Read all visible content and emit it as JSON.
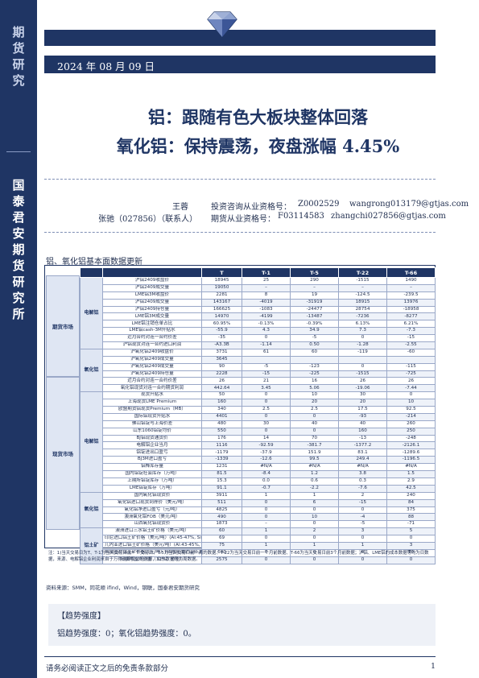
{
  "sidebar": {
    "brand_top": "期货研究",
    "brand_main": "国泰君安期货研究所"
  },
  "header": {
    "date": "2024 年 08 月 09 日"
  },
  "title": {
    "line1": "铝：跟随有色大板块整体回落",
    "line2": "氧化铝：保持震荡，夜盘涨幅 4.45%"
  },
  "authors": [
    {
      "name": "王蓉",
      "cert_label": "投资咨询从业资格号：",
      "cert": "Z0002529",
      "email": "wangrong013179@gtjas.com"
    },
    {
      "name": "张驰（027856）（联系人）",
      "cert_label": "期货从业资格号：",
      "cert": "F03114583",
      "email": "zhangchi027856@gtjas.com"
    }
  ],
  "section_title": "铝、氧化铝基本面数据更新",
  "table": {
    "headers": [
      "",
      "T",
      "T-1",
      "T-5",
      "T-22",
      "T-66"
    ],
    "categories": [
      {
        "name": "期货市场",
        "sub": [
          {
            "name": "电解铝",
            "rows": [
              [
                "沪铝2409收盘价",
                "18945",
                "25",
                "290",
                "-1515",
                "1490"
              ],
              [
                "沪铝2409成交量",
                "19050",
                "–",
                "–",
                "–",
                "–"
              ],
              [
                "LME铝3M收盘价",
                "2281",
                "8",
                "19",
                "-124.5",
                "-239.5"
              ],
              [
                "沪铝2409成交量",
                "143167",
                "-4019",
                "-31919",
                "18915",
                "13976"
              ],
              [
                "沪铝2409持仓量",
                "166625",
                "-1083",
                "-24477",
                "28754",
                "-18958"
              ],
              [
                "LME铝3M成交量",
                "14970",
                "-4199",
                "-13487",
                "-7236",
                "-8277"
              ],
              [
                "LME铝注销仓单占比",
                "60.95%",
                "-0.13%",
                "-0.39%",
                "6.13%",
                "6.21%"
              ],
              [
                "LME铝cash-3M升贴水",
                "-55.9",
                "4.3",
                "34.9",
                "7.3",
                "-7.3"
              ],
              [
                "近月合约对连一合约价差",
                "-35",
                "0",
                "-5",
                "0",
                "-15"
              ],
              [
                "沪铝现货对连一合约进口利润",
                "-A3.3B",
                "-1.14",
                "0.50",
                "-1.28",
                "-2.55"
              ]
            ]
          },
          {
            "name": "氧化铝",
            "rows": [
              [
                "沪氧化铝2409收盘价",
                "3731",
                "61",
                "60",
                "-119",
                "-60"
              ],
              [
                "沪氧化铝2409成交量",
                "3645",
                "",
                "",
                "",
                ""
              ],
              [
                "沪氧化铝2409成交量",
                "90",
                "-5",
                "-123",
                "0",
                "-115"
              ],
              [
                "沪氧化铝2409持仓量",
                "2228",
                "-15",
                "-225",
                "-1515",
                "-725"
              ],
              [
                "近月合约对连一合约价差",
                "26",
                "21",
                "16",
                "26",
                "26"
              ],
              [
                "氧化铝现货对连一合约期货利润",
                "442.64",
                "3.45",
                "5.06",
                "-19.06",
                "-7.44"
              ]
            ]
          }
        ]
      },
      {
        "name": "现货市场",
        "sub": [
          {
            "name": "电解铝",
            "rows": [
              [
                "现货升贴水",
                "50",
                "0",
                "10",
                "30",
                "0"
              ],
              [
                "上海现货LME Premium",
                "160",
                "0",
                "20",
                "20",
                "10"
              ],
              [
                "欧盟期货铝现货Premium（MB）",
                "340",
                "2.5",
                "2.5",
                "17.5",
                "92.5"
              ],
              [
                "国际铝现货升贴水",
                "4401",
                "0",
                "0",
                "-93",
                "-214"
              ],
              [
                "佛山铝锭与上海价差",
                "480",
                "30",
                "40",
                "40",
                "260"
              ],
              [
                "山东1060铝锭均价",
                "550",
                "0",
                "0",
                "160",
                "250"
              ],
              [
                "BJ铝现货通货价",
                "176",
                "14",
                "70",
                "-13",
                "-248"
              ],
              [
                "电解铝企业当月",
                "1116",
                "-92.59",
                "-381.7",
                "-1377.2",
                "-2126.1"
              ],
              [
                "铝锭进出口盈亏",
                "-1179",
                "-37.9",
                "151.9",
                "83.1",
                "-1289.6"
              ],
              [
                "BJ3M进口盈亏",
                "-1339",
                "-12.6",
                "99.5",
                "249.4",
                "-1196.5"
              ],
              [
                "铝棒库存量",
                "1231",
                "#N/A",
                "#N/A",
                "#N/A",
                "#N/A"
              ],
              [
                "国内铝锭社会库存（万吨）",
                "81.5",
                "-8.4",
                "1.2",
                "3.8",
                "1.5"
              ],
              [
                "上期所铝锭库存（万吨）",
                "15.3",
                "0.0",
                "0.6",
                "0.3",
                "2.9"
              ],
              [
                "LME铝锭库存（万吨）",
                "91.1",
                "-0.7",
                "-2.2",
                "-7.6",
                "42.5"
              ]
            ]
          },
          {
            "name": "氧化铝",
            "rows": [
              [
                "国内氧化铝现货价",
                "3911",
                "1",
                "1",
                "2",
                "240"
              ],
              [
                "氧化铝进口现货到岸价（美元/吨）",
                "511",
                "0",
                "6",
                "-15",
                "84"
              ],
              [
                "氧化铝净进口盈亏（元/吨）",
                "4825",
                "0",
                "0",
                "0",
                "375"
              ],
              [
                "澳洲氧化铝FOB（美元/吨）",
                "490",
                "0",
                "10",
                "-4",
                "88"
              ],
              [
                "山西氧化铝现货价",
                "1873",
                "–",
                "0",
                "-5",
                "-71"
              ]
            ]
          },
          {
            "name": "铝土矿",
            "rows": [
              [
                "澳洲进口三水铝土矿价格（美元/吨）",
                "60",
                "1",
                "2",
                "3",
                "5"
              ],
              [
                "印尼进口铝土矿价格（美元/吨）(Al:45-47%, Si:4-6%)",
                "69",
                "0",
                "0",
                "0",
                "0"
              ],
              [
                "几内亚进口铝土矿价格（美元/吨）(Al:43-45%, Si:2-3%)",
                "75",
                "1",
                "1",
                "1",
                "3"
              ],
              [
                "阳泉国产铝土矿价格（元/吨）(合格现货矿山价,Al:Si=4.5)",
                "600",
                "0",
                "0",
                "0",
                "70"
              ],
              [
                "阳泉与国外价差（32%，价差）",
                "2575",
                "0",
                "0",
                "0",
                "0"
              ]
            ]
          }
        ]
      }
    ]
  },
  "note": "注：1)当天交易日为T、T-1为当天交易日前一个交易日、T-5为当天交易日前一周的数据、T-22为当天交易日前一个月前数据、T-66为当天交易日前3个月前数据；沪铝、LME铝的成本数据等均为日数据，来源、电解铝企业利润来自于万得测算和公司测算，山东数据等为周数据。",
  "source": "资料来源：SMM，同花顺 ifind，Wind，钢联，国泰君安期货研究",
  "trend": {
    "heading": "【趋势强度】",
    "text": "铝趋势强度：0；氧化铝趋势强度：0。"
  },
  "footer": {
    "disclaimer": "请务必阅读正文之后的免责条款部分",
    "page": "1"
  }
}
